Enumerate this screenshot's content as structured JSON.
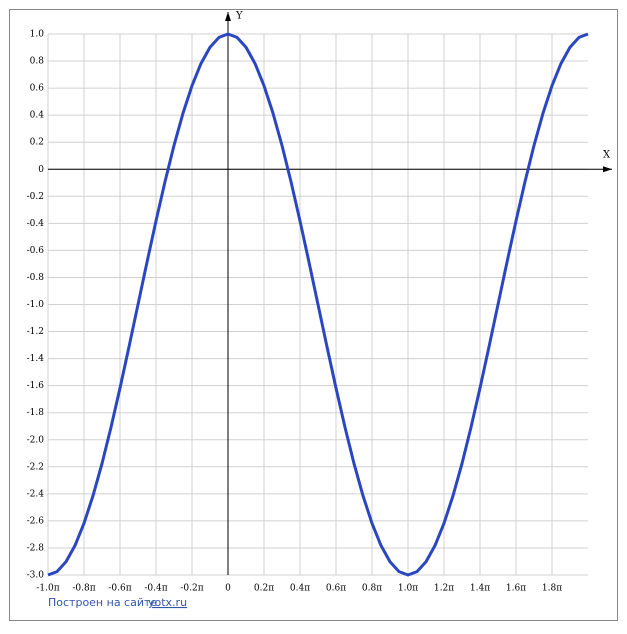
{
  "chart_data": {
    "type": "line",
    "x_label": "X",
    "y_label": "Y",
    "footer": {
      "text": "Построен на сайте",
      "link": "yotx.ru"
    },
    "x": [
      -1,
      -0.95,
      -0.9,
      -0.85,
      -0.8,
      -0.75,
      -0.7,
      -0.65,
      -0.6,
      -0.55,
      -0.5,
      -0.45,
      -0.4,
      -0.35,
      -0.3,
      -0.25,
      -0.2,
      -0.15,
      -0.1,
      -0.05,
      0,
      0.05,
      0.1,
      0.15,
      0.2,
      0.25,
      0.3,
      0.35,
      0.4,
      0.45,
      0.5,
      0.55,
      0.6,
      0.65,
      0.7,
      0.75,
      0.8,
      0.85,
      0.9,
      0.95,
      1,
      1.05,
      1.1,
      1.15,
      1.2,
      1.25,
      1.3,
      1.35,
      1.4,
      1.45,
      1.5,
      1.55,
      1.6,
      1.65,
      1.7,
      1.75,
      1.8,
      1.85,
      1.9,
      1.95,
      2
    ],
    "series": [
      {
        "color": "#2a46c0",
        "values": [
          -3,
          -2.975,
          -2.902,
          -2.782,
          -2.618,
          -2.414,
          -2.176,
          -1.908,
          -1.618,
          -1.313,
          -1,
          -0.687,
          -0.382,
          -0.092,
          0.176,
          0.414,
          0.618,
          0.782,
          0.902,
          0.975,
          1,
          0.975,
          0.902,
          0.782,
          0.618,
          0.414,
          0.176,
          -0.092,
          -0.382,
          -0.687,
          -1,
          -1.313,
          -1.618,
          -1.908,
          -2.176,
          -2.414,
          -2.618,
          -2.782,
          -2.902,
          -2.975,
          -3,
          -2.975,
          -2.902,
          -2.782,
          -2.618,
          -2.414,
          -2.176,
          -1.908,
          -1.618,
          -1.313,
          -1,
          -0.687,
          -0.382,
          -0.092,
          0.176,
          0.414,
          0.618,
          0.782,
          0.902,
          0.975,
          1
        ]
      }
    ],
    "xlim": [
      -1,
      2
    ],
    "ylim": [
      -3,
      1
    ],
    "xticks": [
      {
        "value": -1,
        "label": "-1.0π"
      },
      {
        "value": -0.8,
        "label": "-0.8π"
      },
      {
        "value": -0.6,
        "label": "-0.6π"
      },
      {
        "value": -0.4,
        "label": "-0.4π"
      },
      {
        "value": -0.2,
        "label": "-0.2π"
      },
      0,
      {
        "value": 0.2,
        "label": "0.2π"
      },
      {
        "value": 0.4,
        "label": "0.4π"
      },
      {
        "value": 0.6,
        "label": "0.6π"
      },
      {
        "value": 0.8,
        "label": "0.8π"
      },
      {
        "value": 1,
        "label": "1.0π"
      },
      {
        "value": 1.2,
        "label": "1.2π"
      },
      {
        "value": 1.4,
        "label": "1.4π"
      },
      {
        "value": 1.6,
        "label": "1.6π"
      },
      {
        "value": 1.8,
        "label": "1.8π"
      }
    ],
    "yticks": [
      {
        "value": 1,
        "label": "1.0"
      },
      0.8,
      0.6,
      0.4,
      0.2,
      0,
      -0.2,
      -0.4,
      -0.6,
      -0.8,
      {
        "value": -1,
        "label": "-1.0"
      },
      -1.2,
      -1.4,
      -1.6,
      -1.8,
      {
        "value": -2,
        "label": "-2.0"
      },
      -2.2,
      -2.4,
      -2.6,
      -2.8,
      {
        "value": -3,
        "label": "-3.0"
      }
    ],
    "grid": true
  }
}
